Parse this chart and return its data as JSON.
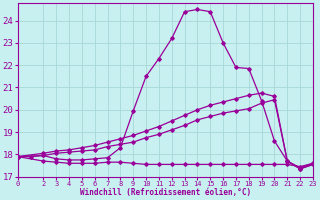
{
  "xlabel": "Windchill (Refroidissement éolien,°C)",
  "bg_color": "#c8f0f0",
  "grid_color": "#a8d8d8",
  "line_color": "#990099",
  "xlim": [
    0,
    23
  ],
  "ylim": [
    17,
    24.8
  ],
  "yticks": [
    17,
    18,
    19,
    20,
    21,
    22,
    23,
    24
  ],
  "xticks": [
    0,
    2,
    3,
    4,
    5,
    6,
    7,
    8,
    9,
    10,
    11,
    12,
    13,
    14,
    15,
    16,
    17,
    18,
    19,
    20,
    21,
    22,
    23
  ],
  "line1_x": [
    0,
    1,
    2,
    3,
    4,
    5,
    6,
    7,
    8,
    9,
    10,
    11,
    12,
    13,
    14,
    15,
    16,
    17,
    18,
    19,
    20,
    21,
    22,
    23
  ],
  "line1_y": [
    17.9,
    17.9,
    17.95,
    17.8,
    17.75,
    17.75,
    17.8,
    17.85,
    18.3,
    19.95,
    21.5,
    22.3,
    23.2,
    24.4,
    24.5,
    24.4,
    23.0,
    21.9,
    21.85,
    20.4,
    18.6,
    17.7,
    17.4,
    17.6
  ],
  "line2_x": [
    0,
    2,
    3,
    4,
    5,
    6,
    7,
    8,
    9,
    10,
    11,
    12,
    13,
    14,
    15,
    16,
    17,
    18,
    19,
    20,
    21,
    22,
    23
  ],
  "line2_y": [
    17.9,
    17.7,
    17.65,
    17.6,
    17.6,
    17.6,
    17.65,
    17.65,
    17.6,
    17.55,
    17.55,
    17.55,
    17.55,
    17.55,
    17.55,
    17.55,
    17.55,
    17.55,
    17.55,
    17.55,
    17.55,
    17.45,
    17.6
  ],
  "line3_x": [
    0,
    2,
    3,
    4,
    5,
    6,
    7,
    8,
    9,
    10,
    11,
    12,
    13,
    14,
    15,
    16,
    17,
    18,
    19,
    20,
    21,
    22,
    23
  ],
  "line3_y": [
    17.9,
    17.95,
    18.05,
    18.1,
    18.15,
    18.2,
    18.35,
    18.45,
    18.55,
    18.75,
    18.9,
    19.1,
    19.3,
    19.55,
    19.7,
    19.85,
    19.95,
    20.05,
    20.3,
    20.45,
    17.7,
    17.35,
    17.55
  ],
  "line4_x": [
    0,
    2,
    3,
    4,
    5,
    6,
    7,
    8,
    9,
    10,
    11,
    12,
    13,
    14,
    15,
    16,
    17,
    18,
    19,
    20,
    21,
    22,
    23
  ],
  "line4_y": [
    17.9,
    18.05,
    18.15,
    18.2,
    18.3,
    18.4,
    18.55,
    18.7,
    18.85,
    19.05,
    19.25,
    19.5,
    19.75,
    20.0,
    20.2,
    20.35,
    20.5,
    20.65,
    20.75,
    20.6,
    17.7,
    17.35,
    17.55
  ]
}
